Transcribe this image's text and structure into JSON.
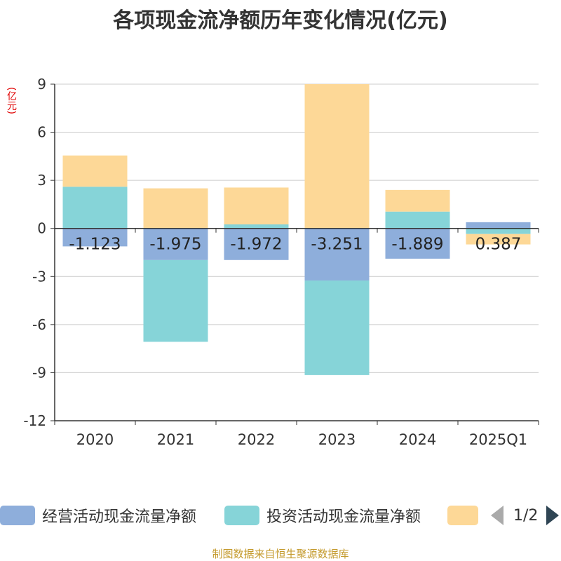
{
  "title": "各项现金流净额历年变化情况(亿元)",
  "unit_label": "(亿元)",
  "colors": {
    "operating": "#8eaedb",
    "investing": "#86d4d8",
    "financing": "#fdd897",
    "axis": "#333333",
    "grid": "#cccccc"
  },
  "legend": {
    "items": [
      {
        "label": "经营活动现金流量净额",
        "color": "#8eaedb"
      },
      {
        "label": "投资活动现金流量净额",
        "color": "#86d4d8"
      },
      {
        "label": "",
        "color": "#fdd897"
      }
    ],
    "page_indicator": "1/2"
  },
  "source_note": "制图数据来自恒生聚源数据库",
  "chart_data": {
    "type": "bar",
    "stacked": true,
    "categories": [
      "2020",
      "2021",
      "2022",
      "2023",
      "2024",
      "2025Q1"
    ],
    "series": [
      {
        "name": "经营活动现金流量净额",
        "values": [
          -1.123,
          -1.975,
          -1.972,
          -3.251,
          -1.889,
          0.387
        ]
      },
      {
        "name": "投资活动现金流量净额",
        "values": [
          2.6,
          -5.1,
          0.25,
          -5.9,
          1.05,
          -0.35
        ]
      },
      {
        "values": [
          1.95,
          2.5,
          2.3,
          9.0,
          1.35,
          -0.65
        ]
      }
    ],
    "data_labels": [
      "-1.123",
      "-1.975",
      "-1.972",
      "-3.251",
      "-1.889",
      "0.387"
    ],
    "ylim": [
      -12,
      9
    ],
    "yticks": [
      9,
      6,
      3,
      0,
      -3,
      -6,
      -9,
      -12
    ],
    "grid": true
  }
}
